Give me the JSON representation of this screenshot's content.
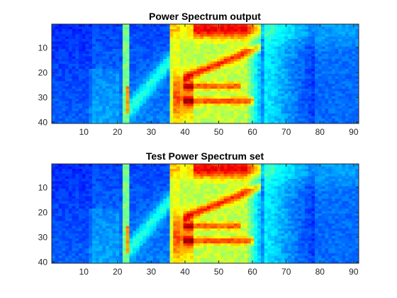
{
  "chart_data": [
    {
      "type": "heatmap",
      "title": "Power Spectrum output",
      "xlabel": "",
      "ylabel": "",
      "xlim": [
        0.5,
        91.5
      ],
      "ylim": [
        40.5,
        0.5
      ],
      "x_ticks": [
        10,
        20,
        30,
        40,
        50,
        60,
        70,
        80,
        90
      ],
      "y_ticks": [
        10,
        20,
        30,
        40
      ],
      "n_cols": 91,
      "n_rows": 40,
      "colormap": "jet",
      "clim": [
        0,
        1
      ],
      "grid": false
    },
    {
      "type": "heatmap",
      "title": "Test Power Spectrum set",
      "xlabel": "",
      "ylabel": "",
      "xlim": [
        0.5,
        91.5
      ],
      "ylim": [
        40.5,
        0.5
      ],
      "x_ticks": [
        10,
        20,
        30,
        40,
        50,
        60,
        70,
        80,
        90
      ],
      "y_ticks": [
        10,
        20,
        30,
        40
      ],
      "n_cols": 91,
      "n_rows": 40,
      "colormap": "jet",
      "clim": [
        0,
        1
      ],
      "grid": false
    }
  ]
}
